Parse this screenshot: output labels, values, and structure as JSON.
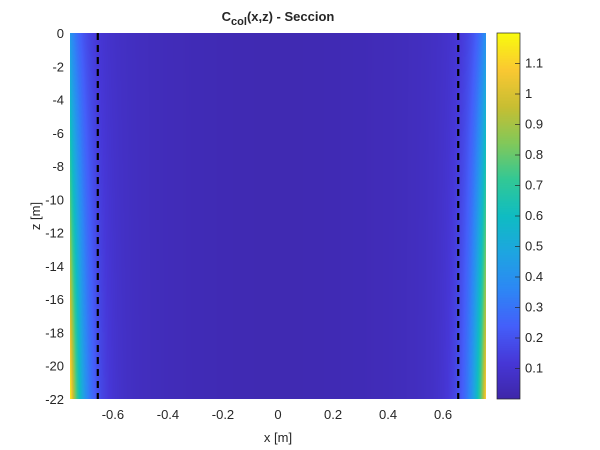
{
  "chart_data": {
    "type": "heatmap",
    "title": "C",
    "title_sub": "col",
    "title_rest": "(x,z) - Seccion",
    "xlabel": "x [m]",
    "ylabel": "z [m]",
    "xlim": [
      -0.756,
      0.756
    ],
    "ylim": [
      -22,
      0
    ],
    "xticks": [
      -0.6,
      -0.4,
      -0.2,
      0,
      0.2,
      0.4,
      0.6
    ],
    "yticks": [
      0,
      -2,
      -4,
      -6,
      -8,
      -10,
      -12,
      -14,
      -16,
      -18,
      -20,
      -22
    ],
    "colorbar": {
      "clim": [
        0,
        1.2
      ],
      "ticks": [
        0.1,
        0.2,
        0.3,
        0.4,
        0.5,
        0.6,
        0.7,
        0.8,
        0.9,
        1,
        1.1
      ],
      "colormap": "parula"
    },
    "dashed_lines_x": [
      -0.655,
      0.655
    ],
    "description_values": {
      "center_value": 0.02,
      "edge_top_value": 0.4,
      "edge_bottom_value": 1.15
    },
    "grid": false
  }
}
